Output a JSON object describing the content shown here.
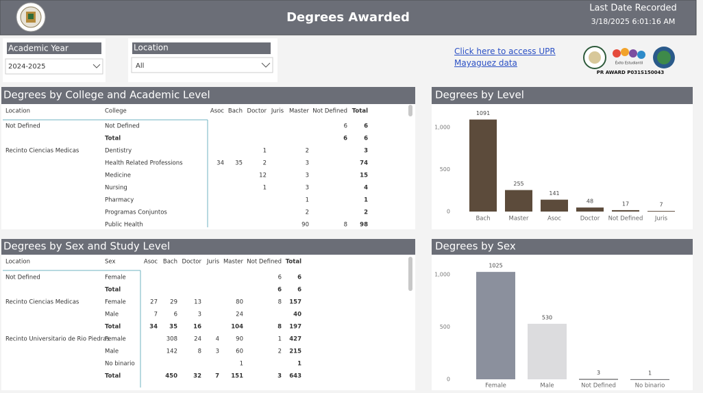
{
  "header": {
    "title": "Degrees Awarded",
    "last_date_label": "Last Date Recorded",
    "last_date": "3/18/2025 6:01:16 AM"
  },
  "filters": [
    {
      "label": "Academic Year",
      "value": "2024-2025"
    },
    {
      "label": "Location",
      "value": "All"
    }
  ],
  "link": {
    "text": "Click here to access UPR Mayaguez data"
  },
  "logos": {
    "badge": "Éxito Estudiantil",
    "caption": "PR AWARD P031S150043"
  },
  "tables": [
    {
      "title": "Degrees by College and Academic Level",
      "columns": [
        "Location",
        "College",
        "Asoc",
        "Bach",
        "Doctor",
        "Juris",
        "Master",
        "Not Defined",
        "Total"
      ],
      "rows": [
        [
          "Not Defined",
          "Not Defined",
          null,
          null,
          null,
          null,
          null,
          6,
          6
        ],
        [
          null,
          "Total",
          null,
          null,
          null,
          null,
          null,
          6,
          6
        ],
        [
          "Recinto Ciencias Medicas",
          "Dentistry",
          null,
          null,
          1,
          null,
          2,
          null,
          3
        ],
        [
          null,
          "Health Related Professions",
          34,
          35,
          2,
          null,
          3,
          null,
          74
        ],
        [
          null,
          "Medicine",
          null,
          null,
          12,
          null,
          3,
          null,
          15
        ],
        [
          null,
          "Nursing",
          null,
          null,
          1,
          null,
          3,
          null,
          4
        ],
        [
          null,
          "Pharmacy",
          null,
          null,
          null,
          null,
          1,
          null,
          1
        ],
        [
          null,
          "Programas Conjuntos",
          null,
          null,
          null,
          null,
          2,
          null,
          2
        ],
        [
          null,
          "Public Health",
          null,
          null,
          null,
          null,
          90,
          8,
          98
        ]
      ]
    },
    {
      "title": "Degrees by Sex and Study Level",
      "columns": [
        "Location",
        "Sex",
        "Asoc",
        "Bach",
        "Doctor",
        "Juris",
        "Master",
        "Not Defined",
        "Total"
      ],
      "rows": [
        [
          "Not Defined",
          "Female",
          null,
          null,
          null,
          null,
          null,
          6,
          6
        ],
        [
          null,
          "Total",
          null,
          null,
          null,
          null,
          null,
          6,
          6
        ],
        [
          "Recinto Ciencias Medicas",
          "Female",
          27,
          29,
          13,
          null,
          80,
          8,
          157
        ],
        [
          null,
          "Male",
          7,
          6,
          3,
          null,
          24,
          null,
          40
        ],
        [
          null,
          "Total",
          34,
          35,
          16,
          null,
          104,
          8,
          197
        ],
        [
          "Recinto Universitario de Rio Piedras",
          "Female",
          null,
          308,
          24,
          4,
          90,
          1,
          427
        ],
        [
          null,
          "Male",
          null,
          142,
          8,
          3,
          60,
          2,
          215
        ],
        [
          null,
          "No binario",
          null,
          null,
          null,
          null,
          1,
          null,
          1
        ],
        [
          null,
          "Total",
          null,
          450,
          32,
          7,
          151,
          3,
          643
        ]
      ]
    }
  ],
  "chart_data": [
    {
      "type": "bar",
      "title": "Degrees by Level",
      "categories": [
        "Bach",
        "Master",
        "Asoc",
        "Doctor",
        "Not Defined",
        "Juris"
      ],
      "values": [
        1091,
        255,
        141,
        48,
        17,
        7
      ],
      "color": "#5c4b3b",
      "ylim": [
        0,
        1250
      ],
      "yticks": [
        0,
        500,
        {
          "value": 1000,
          "label": "1,000"
        }
      ],
      "grid": false
    },
    {
      "type": "bar",
      "title": "Degrees by Sex",
      "categories": [
        "Female",
        "Male",
        "Not Defined",
        "No binario"
      ],
      "values": [
        1025,
        530,
        3,
        1
      ],
      "colors": [
        "#8b909d",
        "#dcdcde",
        "#3e3e40",
        "#5a5a5e"
      ],
      "ylim": [
        0,
        1150
      ],
      "yticks": [
        0,
        500,
        {
          "value": 1000,
          "label": "1,000"
        }
      ],
      "grid": false
    }
  ]
}
